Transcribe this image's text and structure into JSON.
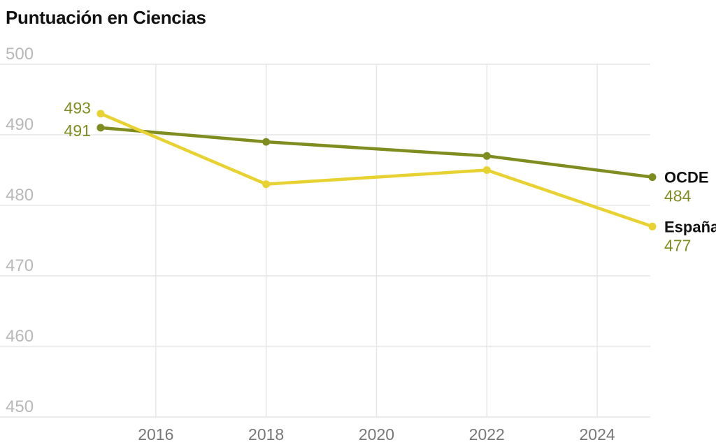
{
  "chart_data": {
    "type": "line",
    "title": "Puntuación en Ciencias",
    "xlabel": "",
    "ylabel": "",
    "ylim": [
      450,
      500
    ],
    "xlim": [
      2014,
      2025
    ],
    "yticks": [
      500,
      490,
      480,
      470,
      460,
      450
    ],
    "xticks": [
      2016,
      2018,
      2020,
      2022,
      2024
    ],
    "grid": true,
    "x": [
      2015,
      2018,
      2022,
      2025
    ],
    "series": [
      {
        "name": "OCDE",
        "values": [
          491,
          489,
          487,
          484
        ],
        "color": "#7f8c1f",
        "start_label": "491",
        "end_label": "484"
      },
      {
        "name": "España",
        "values": [
          493,
          483,
          485,
          477
        ],
        "color": "#e8d231",
        "start_label": "493",
        "end_label": "477"
      }
    ],
    "label_color": "#7f8c1f"
  }
}
